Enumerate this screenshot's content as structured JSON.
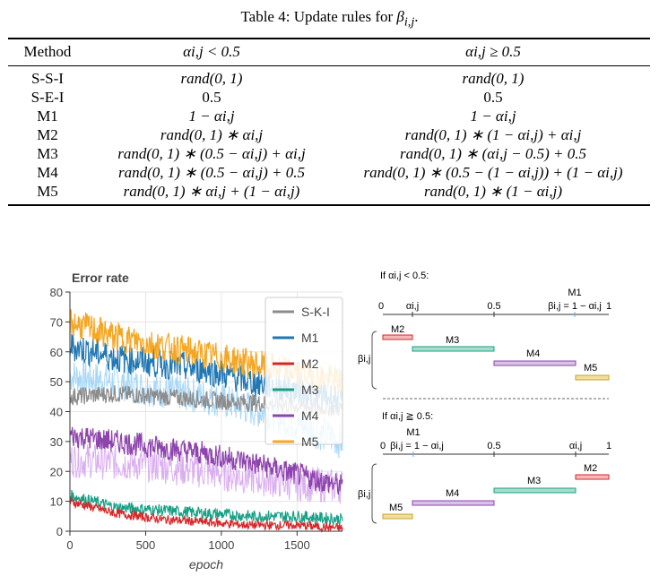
{
  "caption": {
    "prefix": "Table 4: Update rules for ",
    "symbol": "β",
    "subscript": "i,j",
    "suffix": "."
  },
  "table": {
    "headers": [
      "Method",
      "αi,j < 0.5",
      "αi,j ≥ 0.5"
    ],
    "rows": [
      [
        "S-S-I",
        "rand(0, 1)",
        "rand(0, 1)"
      ],
      [
        "S-E-I",
        "0.5",
        "0.5"
      ],
      [
        "M1",
        "1 − αi,j",
        "1 − αi,j"
      ],
      [
        "M2",
        "rand(0, 1) ∗ αi,j",
        "rand(0, 1) ∗ (1 − αi,j) + αi,j"
      ],
      [
        "M3",
        "rand(0, 1) ∗ (0.5 − αi,j) + αi,j",
        "rand(0, 1) ∗ (αi,j − 0.5) + 0.5"
      ],
      [
        "M4",
        "rand(0, 1) ∗ (0.5 − αi,j) + 0.5",
        "rand(0, 1) ∗ (0.5 − (1 − αi,j)) + (1 − αi,j)"
      ],
      [
        "M5",
        "rand(0, 1) ∗ αi,j + (1 − αi,j)",
        "rand(0, 1) ∗ (1 − αi,j)"
      ]
    ]
  },
  "chart_data": {
    "type": "line",
    "title": "Error rate",
    "xlabel": "epoch",
    "ylabel": "",
    "xlim": [
      0,
      1800
    ],
    "ylim": [
      0,
      80
    ],
    "xticks": [
      0,
      500,
      1000,
      1500
    ],
    "yticks": [
      0,
      10,
      20,
      30,
      40,
      50,
      60,
      70,
      80
    ],
    "grid": true,
    "legend_position": "top-right",
    "series": [
      {
        "name": "S-K-I",
        "color": "#8c8c8c",
        "x": [
          0,
          300,
          600,
          900,
          1200,
          1500,
          1800
        ],
        "values": [
          45,
          46,
          45,
          44,
          43,
          42,
          41
        ]
      },
      {
        "name": "M1",
        "color": "#1f77b4",
        "x": [
          0,
          300,
          600,
          900,
          1200,
          1500,
          1800
        ],
        "values": [
          62,
          58,
          56,
          54,
          50,
          47,
          44
        ]
      },
      {
        "name": "M2",
        "color": "#d62728",
        "x": [
          0,
          300,
          600,
          900,
          1200,
          1500,
          1800
        ],
        "values": [
          10,
          6,
          4,
          3,
          2,
          2,
          1
        ]
      },
      {
        "name": "M3",
        "color": "#17a085",
        "x": [
          0,
          300,
          600,
          900,
          1200,
          1500,
          1800
        ],
        "values": [
          12,
          8,
          7,
          6,
          5,
          5,
          4
        ]
      },
      {
        "name": "M4",
        "color": "#8e44ad",
        "x": [
          0,
          300,
          600,
          900,
          1200,
          1500,
          1800
        ],
        "values": [
          32,
          30,
          28,
          26,
          23,
          19,
          15
        ]
      },
      {
        "name": "M5",
        "color": "#f5a623",
        "x": [
          0,
          300,
          600,
          900,
          1200,
          1500,
          1800
        ],
        "values": [
          70,
          65,
          62,
          59,
          56,
          53,
          50
        ]
      }
    ],
    "annotations": [
      {
        "series": "M1",
        "band": "light blue",
        "values": [
          52,
          50,
          47,
          45,
          41,
          36,
          30
        ]
      },
      {
        "series": "M4",
        "band": "light violet",
        "values": [
          24,
          23,
          22,
          20,
          18,
          16,
          15
        ]
      }
    ]
  },
  "diagram": {
    "top": {
      "title": "If αi,j < 0.5:",
      "axis_labels": [
        "0",
        "αi,j",
        "0.5",
        "1"
      ],
      "m1_label": "M1",
      "m1_formula": "βi,j = 1 − αi,j",
      "beta_label": "βi,j",
      "bars": [
        {
          "name": "M2",
          "color": "#d62728"
        },
        {
          "name": "M3",
          "color": "#17a085"
        },
        {
          "name": "M4",
          "color": "#8e44ad"
        },
        {
          "name": "M5",
          "color": "#c9a227"
        }
      ]
    },
    "bottom": {
      "title": "If αi,j ≧ 0.5:",
      "axis_labels": [
        "0",
        "0.5",
        "αi,j",
        "1"
      ],
      "m1_label": "M1",
      "m1_formula": "βi,j = 1 − αi,j",
      "beta_label": "βi,j",
      "bars": [
        {
          "name": "M2",
          "color": "#d62728"
        },
        {
          "name": "M3",
          "color": "#17a085"
        },
        {
          "name": "M4",
          "color": "#8e44ad"
        },
        {
          "name": "M5",
          "color": "#c9a227"
        }
      ]
    }
  }
}
